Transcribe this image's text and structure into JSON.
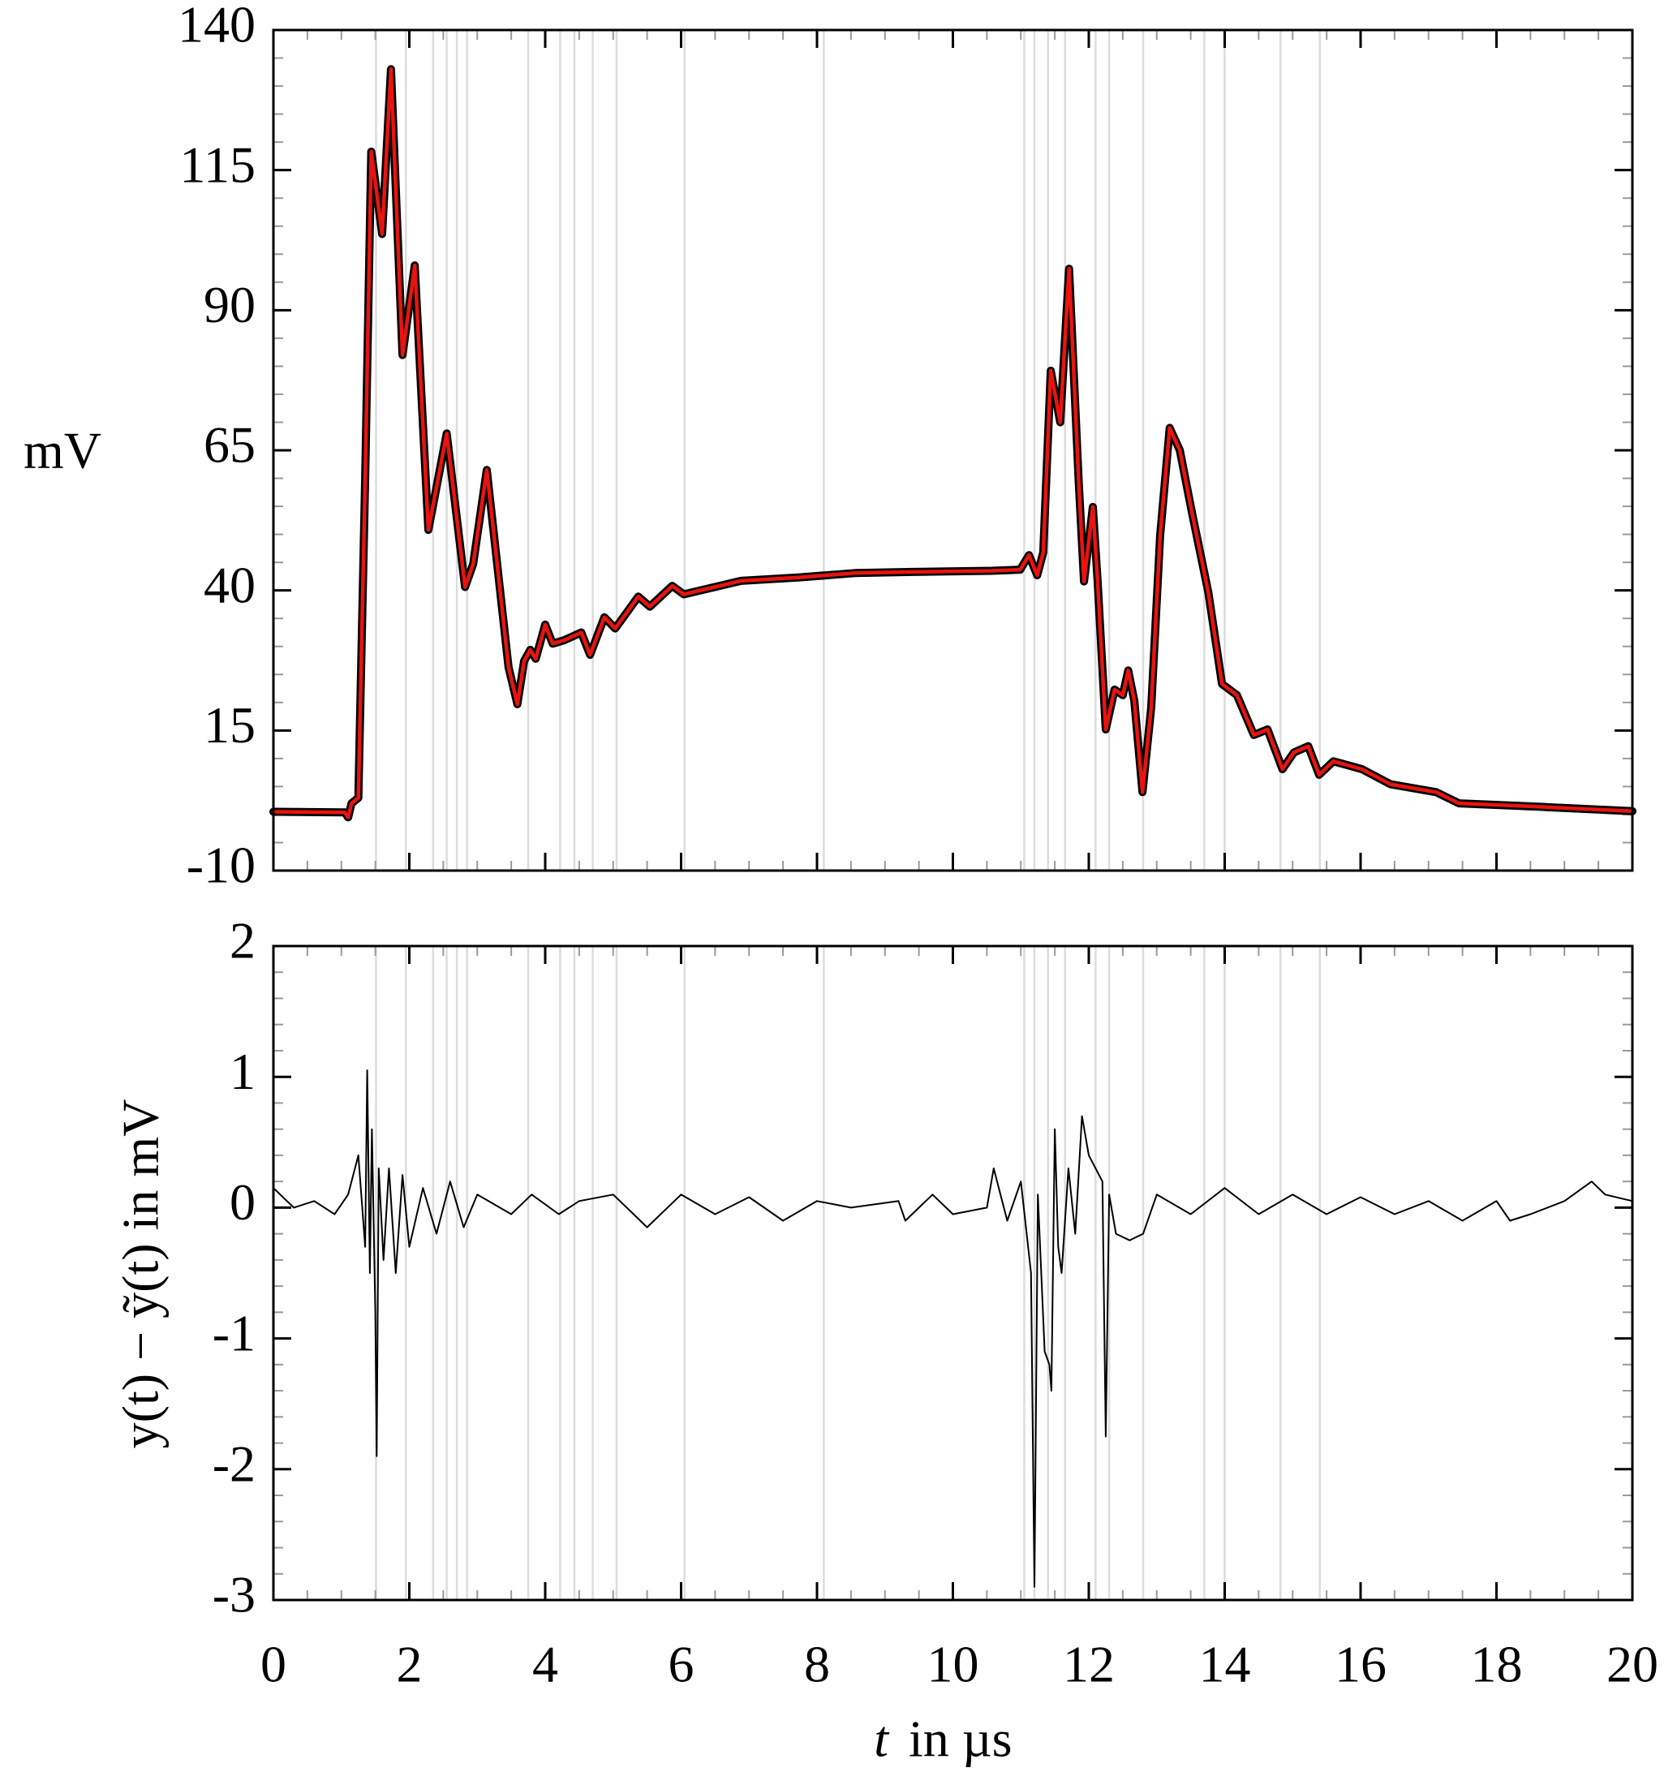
{
  "chart_data": [
    {
      "type": "line",
      "ylabel": "mV",
      "x": [
        0,
        1.05,
        1.1,
        1.15,
        1.25,
        1.35,
        1.44,
        1.6,
        1.73,
        1.9,
        2.08,
        2.28,
        2.55,
        2.82,
        2.94,
        3.14,
        3.46,
        3.59,
        3.69,
        3.78,
        3.86,
        4.0,
        4.11,
        4.28,
        4.53,
        4.66,
        4.87,
        5.03,
        5.37,
        5.54,
        5.87,
        6.04,
        6.88,
        7.72,
        8.56,
        9.4,
        10.57,
        10.99,
        11.12,
        11.24,
        11.33,
        11.44,
        11.58,
        11.71,
        11.85,
        11.93,
        12.06,
        12.13,
        12.25,
        12.38,
        12.5,
        12.58,
        12.67,
        12.79,
        12.92,
        13.05,
        13.19,
        13.34,
        13.52,
        13.76,
        13.96,
        14.18,
        14.43,
        14.63,
        14.85,
        15.02,
        15.23,
        15.39,
        15.6,
        16.02,
        16.44,
        17.11,
        17.45,
        18.62,
        20
      ],
      "series": [
        {
          "color": "#000000",
          "values": [
            0.5,
            0.4,
            -0.5,
            2,
            3,
            60,
            118.3,
            103.6,
            133,
            82,
            98,
            50.8,
            68,
            40.6,
            44.7,
            61.5,
            26.3,
            19.7,
            27.4,
            29.4,
            27.8,
            33.9,
            30.5,
            31.1,
            32.5,
            28.5,
            35.2,
            33.2,
            38.9,
            37.1,
            40.8,
            39.3,
            41.7,
            42.3,
            43.1,
            43.3,
            43.5,
            43.7,
            46.3,
            42.7,
            46.8,
            79.2,
            70,
            97.4,
            59.9,
            41.6,
            54.9,
            41.6,
            15.2,
            22.3,
            21.3,
            25.7,
            20.3,
            4,
            19.2,
            49.7,
            69,
            65,
            53.8,
            39.6,
            23.3,
            21.3,
            14.2,
            15.2,
            8.1,
            11.1,
            12.2,
            7.1,
            9.5,
            8.1,
            5.4,
            4,
            2,
            1.4,
            0.6
          ]
        },
        {
          "color": "#e8140f",
          "values": [
            0.5,
            0.4,
            -0.5,
            2,
            3,
            60,
            118.3,
            103.6,
            133,
            82,
            98,
            50.8,
            68,
            40.6,
            44.7,
            61.5,
            26.3,
            19.7,
            27.4,
            29.4,
            27.8,
            33.9,
            30.5,
            31.1,
            32.5,
            28.5,
            35.2,
            33.2,
            38.9,
            37.1,
            40.8,
            39.3,
            41.7,
            42.3,
            43.1,
            43.3,
            43.5,
            43.7,
            46.3,
            42.7,
            46.8,
            79.2,
            70,
            97.4,
            59.9,
            41.6,
            54.9,
            41.6,
            15.2,
            22.3,
            21.3,
            25.7,
            20.3,
            4,
            19.2,
            49.7,
            69,
            65,
            53.8,
            39.6,
            23.3,
            21.3,
            14.2,
            15.2,
            8.1,
            11.1,
            12.2,
            7.1,
            9.5,
            8.1,
            5.4,
            4,
            2,
            1.4,
            0.6
          ]
        }
      ],
      "xlim": [
        0,
        20
      ],
      "ylim": [
        -10,
        140
      ],
      "xticks": [
        0,
        2,
        4,
        6,
        8,
        10,
        12,
        14,
        16,
        18,
        20
      ],
      "yticks": [
        -10,
        15,
        40,
        65,
        90,
        115,
        140
      ],
      "yminorticks": [
        -5,
        0,
        5,
        10,
        20,
        25,
        30,
        35,
        45,
        50,
        55,
        60,
        70,
        75,
        80,
        85,
        95,
        100,
        105,
        110,
        120,
        125,
        130,
        135
      ],
      "xminorticks": [
        0.5,
        1,
        1.5,
        2.5,
        3,
        3.5,
        4.5,
        5,
        5.5,
        6.5,
        7,
        7.5,
        8.5,
        9,
        9.5,
        10.5,
        11,
        11.5,
        12.5,
        13,
        13.5,
        14.5,
        15,
        15.5,
        16.5,
        17,
        17.5,
        18.5,
        19,
        19.5
      ],
      "show_xtick_labels": false,
      "knots": [
        1.51,
        1.95,
        2.35,
        2.55,
        2.7,
        2.85,
        3.75,
        4.22,
        4.43,
        4.7,
        5.05,
        6.05,
        8.1,
        11.05,
        11.2,
        11.4,
        11.65,
        12.1,
        12.3,
        12.8,
        13.7,
        14.0,
        14.82,
        15.4
      ]
    },
    {
      "type": "line",
      "ylabel": "y(t) − ỹ(t) in mV",
      "xlabel_var": "t",
      "xlabel_unit": "in µs",
      "x": [
        0,
        0.3,
        0.6,
        0.9,
        1.1,
        1.25,
        1.35,
        1.38,
        1.42,
        1.45,
        1.5,
        1.52,
        1.55,
        1.62,
        1.7,
        1.8,
        1.9,
        2.0,
        2.2,
        2.4,
        2.6,
        2.8,
        3.0,
        3.5,
        3.8,
        4.2,
        4.5,
        5.0,
        5.5,
        6.0,
        6.5,
        7.0,
        7.5,
        8.0,
        8.5,
        9.2,
        9.3,
        9.7,
        10.0,
        10.5,
        10.6,
        10.8,
        11.0,
        11.15,
        11.2,
        11.25,
        11.35,
        11.42,
        11.45,
        11.5,
        11.55,
        11.6,
        11.7,
        11.8,
        11.9,
        12.0,
        12.1,
        12.2,
        12.25,
        12.3,
        12.4,
        12.6,
        12.8,
        13.0,
        13.5,
        14.0,
        14.5,
        15.0,
        15.5,
        16.0,
        16.5,
        17.0,
        17.5,
        18.0,
        18.2,
        18.5,
        19.0,
        19.4,
        19.6,
        20
      ],
      "series": [
        {
          "color": "#000000",
          "values": [
            0.15,
            0,
            0.05,
            -0.05,
            0.1,
            0.4,
            -0.3,
            1.05,
            -0.5,
            0.6,
            -0.8,
            -1.9,
            0.3,
            -0.4,
            0.3,
            -0.5,
            0.25,
            -0.3,
            0.15,
            -0.2,
            0.2,
            -0.15,
            0.1,
            -0.05,
            0.1,
            -0.05,
            0.05,
            0.1,
            -0.15,
            0.1,
            -0.05,
            0.08,
            -0.1,
            0.05,
            0,
            0.05,
            -0.1,
            0.1,
            -0.05,
            0,
            0.3,
            -0.1,
            0.2,
            -0.5,
            -2.9,
            0.1,
            -1.1,
            -1.2,
            -1.4,
            0.6,
            -0.3,
            -0.5,
            0.3,
            -0.2,
            0.7,
            0.4,
            0.3,
            0.2,
            -1.75,
            0.1,
            -0.2,
            -0.25,
            -0.2,
            0.1,
            -0.05,
            0.15,
            -0.05,
            0.1,
            -0.05,
            0.08,
            -0.05,
            0.05,
            -0.1,
            0.05,
            -0.1,
            -0.05,
            0.05,
            0.2,
            0.1,
            0.05
          ]
        }
      ],
      "xlim": [
        0,
        20
      ],
      "ylim": [
        -3,
        2
      ],
      "xticks": [
        0,
        2,
        4,
        6,
        8,
        10,
        12,
        14,
        16,
        18,
        20
      ],
      "yticks": [
        -3,
        -2,
        -1,
        0,
        1,
        2
      ],
      "yminorticks": [
        -2.8,
        -2.6,
        -2.4,
        -2.2,
        -1.8,
        -1.6,
        -1.4,
        -1.2,
        -0.8,
        -0.6,
        -0.4,
        -0.2,
        0.2,
        0.4,
        0.6,
        0.8,
        1.2,
        1.4,
        1.6,
        1.8
      ],
      "xminorticks": [
        0.5,
        1,
        1.5,
        2.5,
        3,
        3.5,
        4.5,
        5,
        5.5,
        6.5,
        7,
        7.5,
        8.5,
        9,
        9.5,
        10.5,
        11,
        11.5,
        12.5,
        13,
        13.5,
        14.5,
        15,
        15.5,
        16.5,
        17,
        17.5,
        18.5,
        19,
        19.5
      ],
      "show_xtick_labels": true,
      "knots": [
        1.51,
        1.95,
        2.35,
        2.55,
        2.7,
        2.85,
        3.75,
        4.22,
        4.43,
        4.7,
        5.05,
        6.05,
        8.1,
        11.05,
        11.2,
        11.4,
        11.65,
        12.1,
        12.3,
        12.8,
        13.7,
        14.0,
        14.82,
        15.4
      ]
    }
  ]
}
